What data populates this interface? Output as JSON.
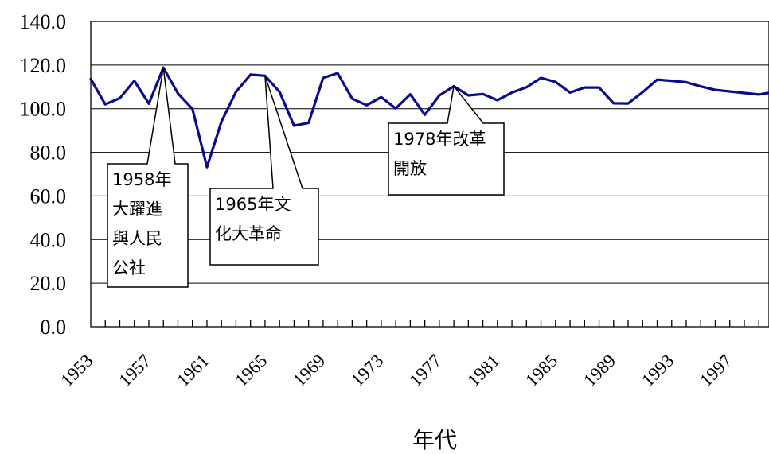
{
  "chart_data": {
    "type": "line",
    "xlabel": "年代",
    "ylabel": "",
    "ylim": [
      0,
      140
    ],
    "ytick_labels": [
      "0.0",
      "20.0",
      "40.0",
      "60.0",
      "80.0",
      "100.0",
      "120.0",
      "140.0"
    ],
    "xtick_labels": [
      "1953",
      "1957",
      "1961",
      "1965",
      "1969",
      "1973",
      "1977",
      "1981",
      "1985",
      "1989",
      "1993",
      "1997"
    ],
    "grid": "horizontal",
    "line_color": "#0a0a8c",
    "x": [
      1953,
      1954,
      1955,
      1956,
      1957,
      1958,
      1959,
      1960,
      1961,
      1962,
      1963,
      1964,
      1965,
      1966,
      1967,
      1968,
      1969,
      1970,
      1971,
      1972,
      1973,
      1974,
      1975,
      1976,
      1977,
      1978,
      1979,
      1980,
      1981,
      1982,
      1983,
      1984,
      1985,
      1986,
      1987,
      1988,
      1989,
      1990,
      1991,
      1992,
      1993,
      1994,
      1995,
      1996,
      1997,
      1998,
      1999,
      2000
    ],
    "values": [
      113.6,
      102,
      104.8,
      112.8,
      102.3,
      118.8,
      107,
      99.9,
      73.2,
      94.1,
      107.7,
      115.6,
      115.1,
      107.7,
      92.2,
      93.5,
      114.1,
      116.3,
      104.6,
      101.6,
      105.3,
      100.1,
      106.6,
      97.2,
      106.1,
      110.3,
      106.1,
      106.7,
      103.9,
      107.4,
      109.8,
      114.1,
      112.3,
      107.4,
      109.7,
      109.7,
      102.5,
      102.4,
      107.6,
      113.3,
      112.8,
      112.1,
      110.2,
      108.6,
      107.9,
      107.2,
      106.5,
      107.6
    ],
    "annotations": [
      {
        "year": 1958,
        "lines": [
          "1958年",
          "大躍進",
          "與人民",
          "公社"
        ]
      },
      {
        "year": 1965,
        "lines": [
          "1965年文",
          "化大革命"
        ]
      },
      {
        "year": 1978,
        "lines": [
          "1978年改革",
          "開放"
        ]
      }
    ]
  }
}
